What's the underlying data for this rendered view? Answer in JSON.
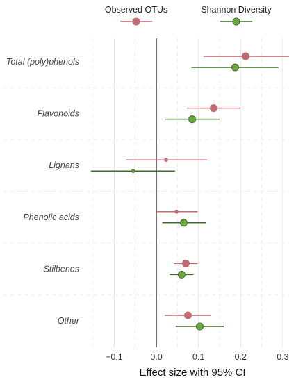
{
  "chart_data": {
    "type": "forest",
    "xlabel": "Effect size with 95% CI",
    "xlim": [
      -0.165,
      0.315
    ],
    "xticks": [
      -0.1,
      0.0,
      0.1,
      0.2,
      0.3
    ],
    "xtick_labels": [
      "−0.1",
      "0.0",
      "0.1",
      "0.2",
      "0.3"
    ],
    "reference_line": 0,
    "grid": true,
    "legend_position": "top",
    "categories": [
      "Total (poly)phenols",
      "Flavonoids",
      "Lignans",
      "Phenolic acids",
      "Stilbenes",
      "Other"
    ],
    "series": [
      {
        "name": "Observed OTUs",
        "color": "#c26a72",
        "marker": "circle",
        "estimates": [
          0.212,
          0.136,
          0.023,
          0.048,
          0.07,
          0.075
        ],
        "ci_low": [
          0.112,
          0.072,
          -0.072,
          0.0,
          0.042,
          0.02
        ],
        "ci_high": [
          0.315,
          0.199,
          0.12,
          0.098,
          0.098,
          0.13
        ],
        "significant": [
          true,
          true,
          false,
          false,
          true,
          true
        ]
      },
      {
        "name": "Shannon Diversity",
        "color": "#6aa83e",
        "line_color": "#3f6b2a",
        "marker": "circle",
        "estimates": [
          0.187,
          0.085,
          -0.055,
          0.065,
          0.06,
          0.103
        ],
        "ci_low": [
          0.083,
          0.02,
          -0.155,
          0.014,
          0.032,
          0.046
        ],
        "ci_high": [
          0.29,
          0.15,
          0.044,
          0.117,
          0.088,
          0.16
        ],
        "significant": [
          true,
          true,
          false,
          true,
          true,
          true
        ]
      }
    ]
  }
}
